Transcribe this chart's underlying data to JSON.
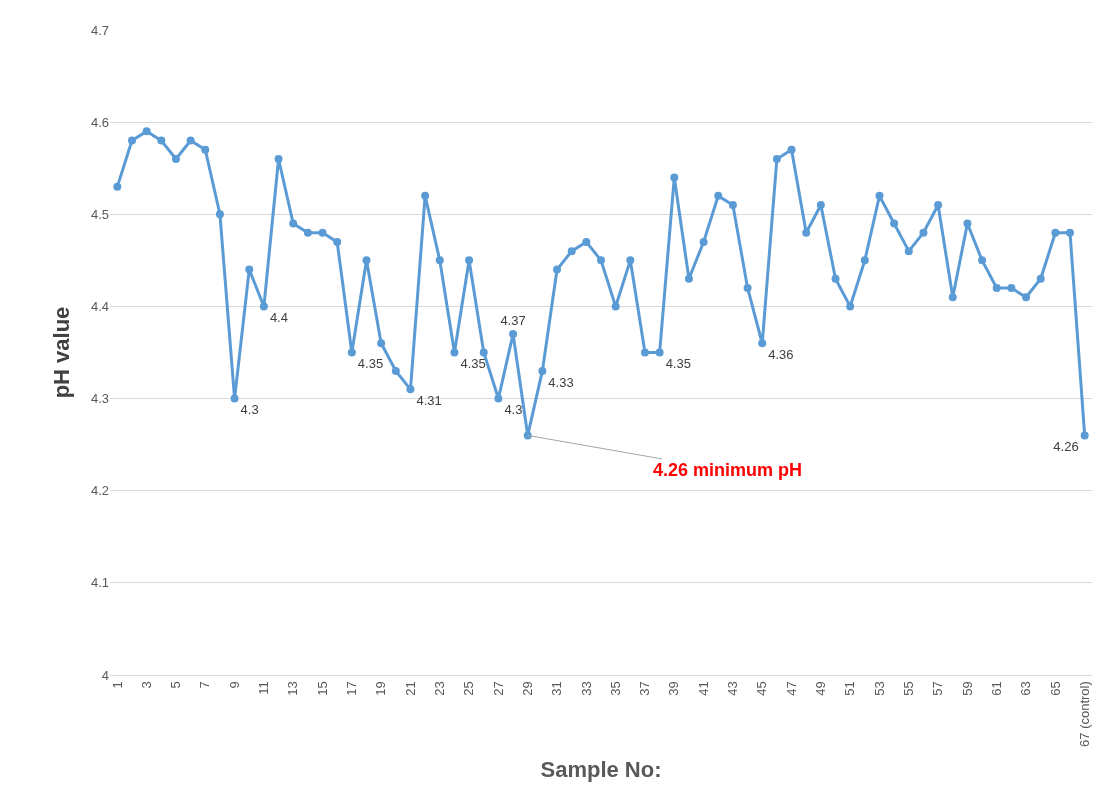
{
  "chart_data": {
    "type": "line",
    "xlabel": "Sample No:",
    "ylabel": "pH value",
    "categories": [
      "1",
      null,
      "3",
      null,
      "5",
      null,
      "7",
      null,
      "9",
      null,
      "11",
      null,
      "13",
      null,
      "15",
      null,
      "17",
      null,
      "19",
      null,
      "21",
      null,
      "23",
      null,
      "25",
      null,
      "27",
      null,
      "29",
      null,
      "31",
      null,
      "33",
      null,
      "35",
      null,
      "37",
      null,
      "39",
      null,
      "41",
      null,
      "43",
      null,
      "45",
      null,
      "47",
      null,
      "49",
      null,
      "51",
      null,
      "53",
      null,
      "55",
      null,
      "57",
      null,
      "59",
      null,
      "61",
      null,
      "63",
      null,
      "65",
      null,
      "67 (control)"
    ],
    "series": [
      {
        "color": "#5b9bd5",
        "marker": "circle",
        "line_style": "solid",
        "values": [
          4.53,
          4.58,
          4.59,
          4.58,
          4.56,
          4.58,
          4.57,
          4.5,
          4.3,
          4.44,
          4.4,
          4.56,
          4.49,
          4.48,
          4.48,
          4.47,
          4.35,
          4.45,
          4.36,
          4.33,
          4.31,
          4.52,
          4.45,
          4.35,
          4.45,
          4.35,
          4.3,
          4.37,
          4.26,
          4.33,
          4.44,
          4.46,
          4.47,
          4.45,
          4.4,
          4.45,
          4.35,
          4.35,
          4.54,
          4.43,
          4.47,
          4.52,
          4.51,
          4.42,
          4.36,
          4.56,
          4.57,
          4.48,
          4.51,
          4.43,
          4.4,
          4.45,
          4.52,
          4.49,
          4.46,
          4.48,
          4.51,
          4.41,
          4.49,
          4.45,
          4.42,
          4.42,
          4.41,
          4.43,
          4.48,
          4.48,
          4.26
        ],
        "value_labels": [
          null,
          null,
          null,
          null,
          null,
          null,
          null,
          null,
          "4.3",
          null,
          "4.4",
          null,
          null,
          null,
          null,
          null,
          "4.35",
          null,
          null,
          null,
          "4.31",
          null,
          null,
          "4.35",
          null,
          null,
          "4.3",
          "4.37",
          null,
          "4.33",
          null,
          null,
          null,
          null,
          null,
          null,
          null,
          "4.35",
          null,
          null,
          null,
          null,
          null,
          null,
          "4.36",
          null,
          null,
          null,
          null,
          null,
          null,
          null,
          null,
          null,
          null,
          null,
          null,
          null,
          null,
          null,
          null,
          null,
          null,
          null,
          null,
          null,
          "4.26"
        ]
      }
    ],
    "ylim": [
      4,
      4.7
    ],
    "yticks": [
      4,
      4.1,
      4.2,
      4.3,
      4.4,
      4.5,
      4.6,
      4.7
    ],
    "grid": "y",
    "annotations": [
      {
        "text": "4.26 minimum pH",
        "x": "29",
        "y": 4.26
      }
    ]
  }
}
